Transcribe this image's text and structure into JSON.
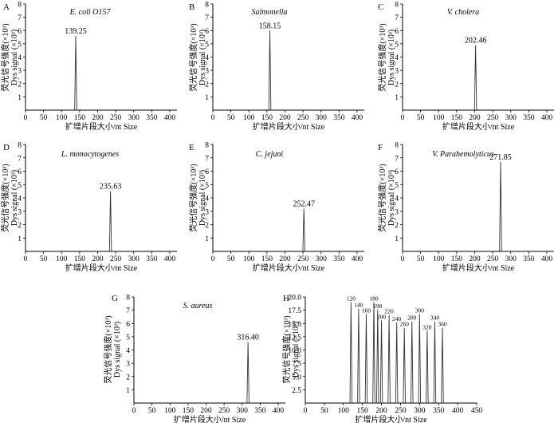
{
  "figure": {
    "xlabel": "扩增片段大小/nt  Size",
    "ylabel_cn": "荧光信号强度(×10³)",
    "ylabel_en": "Dys signal (×10³)"
  },
  "chart_data": [
    {
      "type": "line",
      "panel": "A",
      "title": "E. coli O157",
      "xlim": [
        0,
        420
      ],
      "ylim": [
        0,
        8
      ],
      "xticks": [
        0,
        50,
        100,
        150,
        200,
        250,
        300,
        350,
        400
      ],
      "yticks": [
        1,
        2,
        3,
        4,
        5,
        6,
        7,
        8
      ],
      "peaks": [
        {
          "x": 139.25,
          "y": 5.6,
          "label": "139.25"
        }
      ]
    },
    {
      "type": "line",
      "panel": "B",
      "title": "Salmonella",
      "xlim": [
        0,
        420
      ],
      "ylim": [
        0,
        8
      ],
      "xticks": [
        0,
        50,
        100,
        150,
        200,
        250,
        300,
        350,
        400
      ],
      "yticks": [
        1,
        2,
        3,
        4,
        5,
        6,
        7,
        8
      ],
      "peaks": [
        {
          "x": 158.15,
          "y": 6.0,
          "label": "158.15"
        }
      ]
    },
    {
      "type": "line",
      "panel": "C",
      "title": "V. cholera",
      "xlim": [
        0,
        420
      ],
      "ylim": [
        0,
        8
      ],
      "xticks": [
        0,
        50,
        100,
        150,
        200,
        250,
        300,
        350,
        400
      ],
      "yticks": [
        1,
        2,
        3,
        4,
        5,
        6,
        7,
        8
      ],
      "peaks": [
        {
          "x": 202.46,
          "y": 4.9,
          "label": "202.46"
        }
      ]
    },
    {
      "type": "line",
      "panel": "D",
      "title": "L. monocytogenes",
      "xlim": [
        0,
        420
      ],
      "ylim": [
        0,
        8
      ],
      "xticks": [
        0,
        50,
        100,
        150,
        200,
        250,
        300,
        350,
        400
      ],
      "yticks": [
        1,
        2,
        3,
        4,
        5,
        6,
        7,
        8
      ],
      "peaks": [
        {
          "x": 235.63,
          "y": 4.5,
          "label": "235.63"
        }
      ]
    },
    {
      "type": "line",
      "panel": "E",
      "title": "C. jejuni",
      "xlim": [
        0,
        420
      ],
      "ylim": [
        0,
        8
      ],
      "xticks": [
        0,
        50,
        100,
        150,
        200,
        250,
        300,
        350,
        400
      ],
      "yticks": [
        1,
        2,
        3,
        4,
        5,
        6,
        7,
        8
      ],
      "peaks": [
        {
          "x": 252.47,
          "y": 3.2,
          "label": "252.47"
        }
      ]
    },
    {
      "type": "line",
      "panel": "F",
      "title": "V. Parahemolyticus",
      "xlim": [
        0,
        420
      ],
      "ylim": [
        0,
        8
      ],
      "xticks": [
        0,
        50,
        100,
        150,
        200,
        250,
        300,
        350,
        400
      ],
      "yticks": [
        1,
        2,
        3,
        4,
        5,
        6,
        7,
        8
      ],
      "peaks": [
        {
          "x": 271.85,
          "y": 6.7,
          "label": "271.85"
        }
      ]
    },
    {
      "type": "line",
      "panel": "G",
      "title": "S. aureus",
      "xlim": [
        0,
        420
      ],
      "ylim": [
        0,
        8
      ],
      "xticks": [
        0,
        50,
        100,
        150,
        200,
        250,
        300,
        350,
        400
      ],
      "yticks": [
        1,
        2,
        3,
        4,
        5,
        6,
        7,
        8
      ],
      "peaks": [
        {
          "x": 316.4,
          "y": 4.6,
          "label": "316.40"
        }
      ]
    },
    {
      "type": "line",
      "panel": "H",
      "title": "",
      "xlim": [
        0,
        450
      ],
      "ylim": [
        0,
        20
      ],
      "xticks": [
        0,
        50,
        100,
        150,
        200,
        250,
        300,
        350,
        400,
        450
      ],
      "yticks": [
        2.5,
        5.0,
        7.5,
        10.0,
        12.5,
        15.0,
        17.5,
        20.0
      ],
      "ytick_labels": [
        "2.5",
        "5.0",
        "7.5",
        "10.0",
        "12.5",
        "15.0",
        "17.5",
        "20.0"
      ],
      "peaks": [
        {
          "x": 120,
          "y": 19.0,
          "label": "120"
        },
        {
          "x": 140,
          "y": 17.8,
          "label": "140"
        },
        {
          "x": 160,
          "y": 16.8,
          "label": "160"
        },
        {
          "x": 180,
          "y": 19.0,
          "label": "180"
        },
        {
          "x": 190,
          "y": 17.6,
          "label": "190"
        },
        {
          "x": 200,
          "y": 15.6,
          "label": "200"
        },
        {
          "x": 220,
          "y": 16.6,
          "label": "220"
        },
        {
          "x": 240,
          "y": 15.2,
          "label": "240"
        },
        {
          "x": 260,
          "y": 14.2,
          "label": "260"
        },
        {
          "x": 280,
          "y": 15.4,
          "label": "280"
        },
        {
          "x": 300,
          "y": 16.8,
          "label": "300"
        },
        {
          "x": 320,
          "y": 13.6,
          "label": "320"
        },
        {
          "x": 340,
          "y": 15.4,
          "label": "340"
        },
        {
          "x": 360,
          "y": 14.2,
          "label": "360"
        }
      ]
    }
  ]
}
